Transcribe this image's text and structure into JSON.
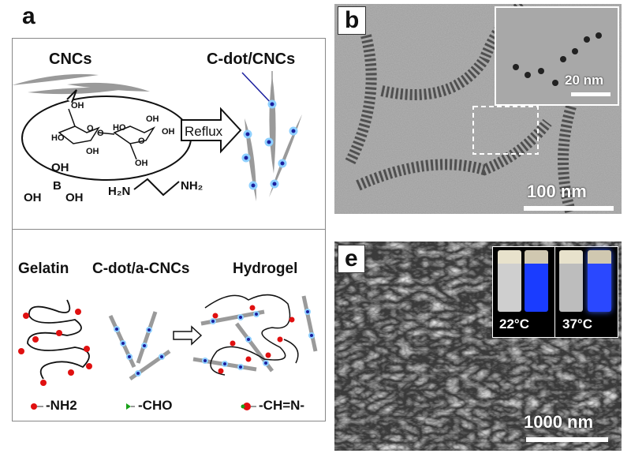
{
  "panel_a": {
    "label": "a",
    "top": {
      "cncs_label": "CNCs",
      "product_label": "C-dot/CNCs",
      "reflux_label": "Reflux",
      "glucose_groups": [
        "OH",
        "HO",
        "O",
        "OH",
        "HO",
        "OH",
        "O",
        "OH",
        "O",
        "OH"
      ],
      "boric_acid": {
        "center": "B",
        "groups": [
          "OH",
          "OH",
          "OH"
        ]
      },
      "ethylenediamine": {
        "left": "H2N",
        "right": "NH2"
      }
    },
    "bottom": {
      "gelatin_label": "Gelatin",
      "acnc_label": "C-dot/a-CNCs",
      "hydrogel_label": "Hydrogel",
      "legend": [
        "-NH2",
        "-CHO",
        "-CH=N-"
      ]
    },
    "colors": {
      "cdot": "#1a1f9e",
      "glow": "#8fd0ff",
      "amine": "#e01010",
      "aldehyde": "#18a018",
      "rod": "#9a9a9a"
    }
  },
  "panel_b": {
    "label": "b",
    "scale_bar": "100 nm",
    "inset_scale_bar": "20 nm"
  },
  "panel_e": {
    "label": "e",
    "scale_bar": "1000 nm",
    "vials": [
      "22°C",
      "37°C"
    ]
  }
}
